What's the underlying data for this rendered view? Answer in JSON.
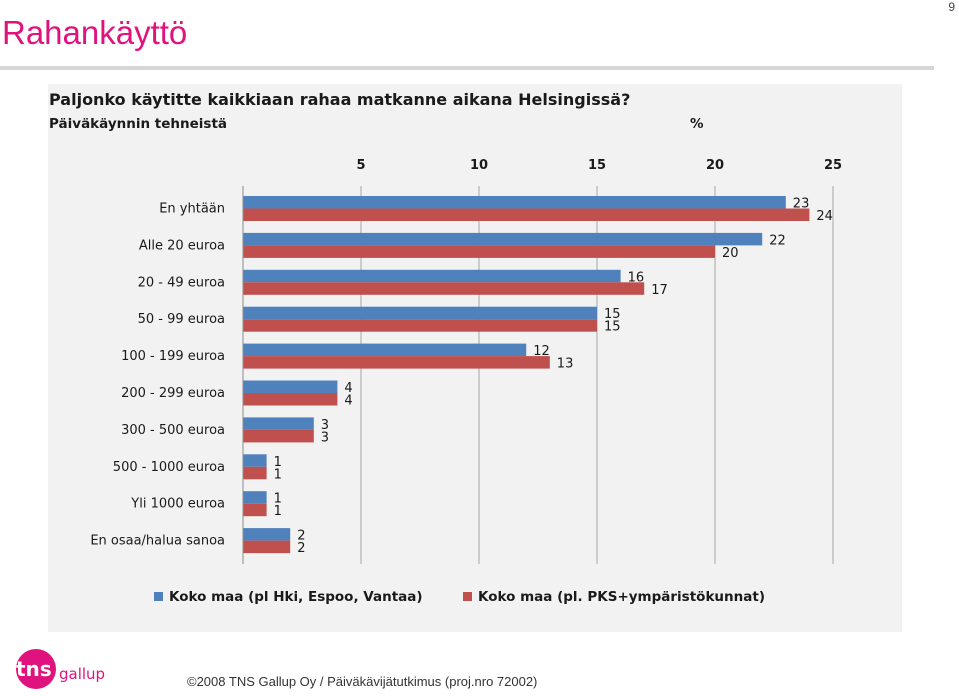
{
  "slide": {
    "title": "Rahankäyttö",
    "page_number": "9",
    "footer": "©2008 TNS Gallup Oy / Päiväkävijätutkimus (proj.nro 72002)",
    "logo_text_tns": "tns",
    "logo_text_gallup": "gallup",
    "accent_color": "#e0127d"
  },
  "chart_data": {
    "type": "bar",
    "orientation": "horizontal",
    "title": "Paljonko käytitte kaikkiaan rahaa matkanne aikana Helsingissä?",
    "subtitle": "Päiväkäynnin tehneistä",
    "unit": "%",
    "xlim": [
      0,
      25
    ],
    "xticks": [
      5,
      10,
      15,
      20,
      25
    ],
    "axis_position": "top",
    "grid": true,
    "legend_position": "bottom",
    "categories": [
      "En yhtään",
      "Alle 20 euroa",
      "20 - 49 euroa",
      "50 - 99 euroa",
      "100 - 199 euroa",
      "200 - 299 euroa",
      "300 - 500 euroa",
      "500 - 1000 euroa",
      "Yli 1000 euroa",
      "En osaa/halua sanoa"
    ],
    "series": [
      {
        "name": "Koko maa (pl Hki, Espoo, Vantaa)",
        "color": "#4f81bd",
        "values": [
          23,
          22,
          16,
          15,
          12,
          4,
          3,
          1,
          1,
          2
        ]
      },
      {
        "name": "Koko maa (pl. PKS+ympäristökunnat)",
        "color": "#c0504d",
        "values": [
          24,
          20,
          17,
          15,
          13,
          4,
          3,
          1,
          1,
          2
        ]
      }
    ]
  }
}
